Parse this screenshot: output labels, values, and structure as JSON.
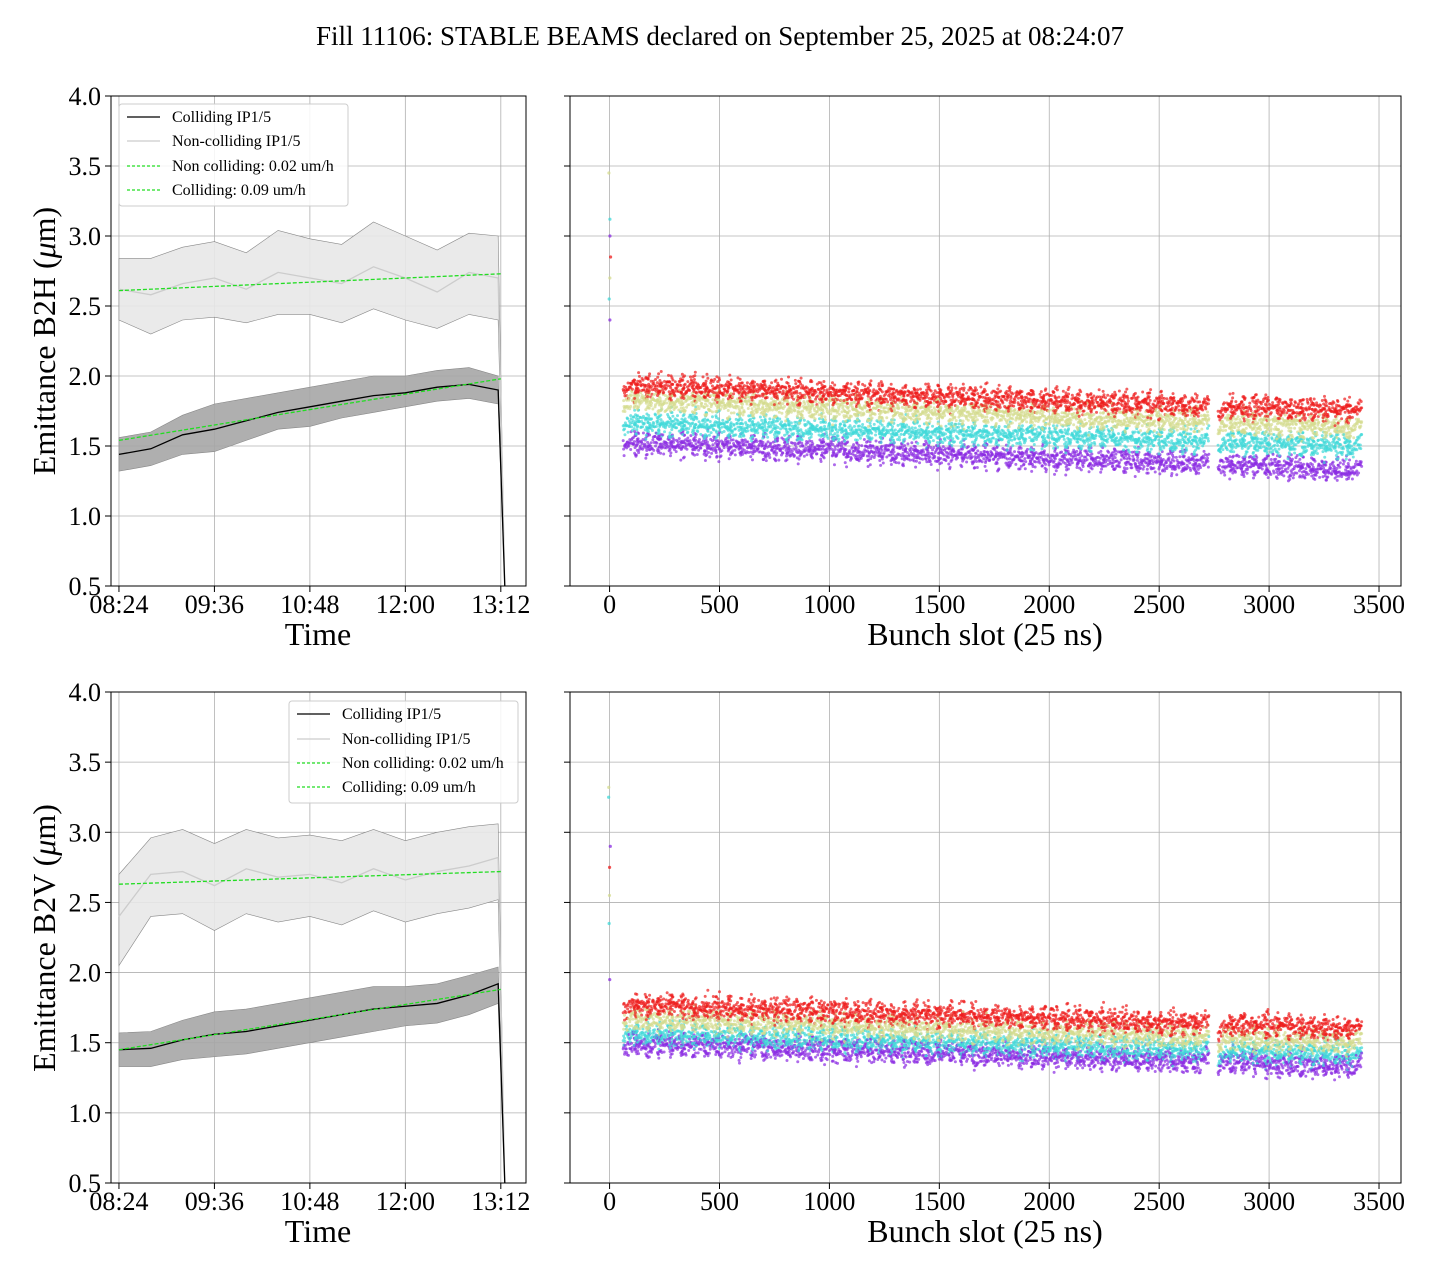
{
  "figure": {
    "title": "Fill 11106: STABLE BEAMS declared on September 25, 2025 at 08:24:07"
  },
  "colors": {
    "colliding_line": "#000000",
    "colliding_band": "#a6a6a6",
    "noncolliding_line": "#cccccc",
    "noncolliding_band": "#e8e8e8",
    "fit": "#22dd22",
    "grid": "#b0b0b0",
    "scatter": [
      "#8a2be2",
      "#3fd8d8",
      "#d4db8e",
      "#ee1c1c"
    ]
  },
  "chart_data": [
    {
      "type": "line",
      "panel": "B2H-time",
      "xlabel": "Time",
      "ylabel": "Emittance B2H ($\\mu$m)",
      "xlim": [
        "08:18",
        "13:31"
      ],
      "ylim": [
        0.5,
        4.0
      ],
      "xticks": [
        "08:24",
        "09:36",
        "10:48",
        "12:00",
        "13:12"
      ],
      "yticks": [
        "0.5",
        "1.0",
        "1.5",
        "2.0",
        "2.5",
        "3.0",
        "3.5",
        "4.0"
      ],
      "grid": true,
      "legend_position": "top-left",
      "legend": [
        "Colliding IP1/5",
        "Non-colliding IP1/5",
        "Non colliding: 0.02 um/h",
        "Colliding: 0.09 um/h"
      ],
      "colliding": {
        "times": [
          "08:24",
          "08:48",
          "09:12",
          "09:36",
          "10:00",
          "10:24",
          "10:48",
          "11:12",
          "11:36",
          "12:00",
          "12:24",
          "12:48",
          "13:10",
          "13:15"
        ],
        "mean": [
          1.44,
          1.48,
          1.58,
          1.62,
          1.68,
          1.74,
          1.78,
          1.82,
          1.86,
          1.88,
          1.92,
          1.94,
          1.9,
          0.5
        ],
        "band_low": [
          1.32,
          1.36,
          1.44,
          1.46,
          1.54,
          1.62,
          1.64,
          1.7,
          1.74,
          1.78,
          1.82,
          1.84,
          1.8,
          0.5
        ],
        "band_high": [
          1.56,
          1.6,
          1.72,
          1.8,
          1.84,
          1.88,
          1.92,
          1.96,
          2.0,
          2.0,
          2.04,
          2.06,
          2.0,
          0.5
        ]
      },
      "noncolliding": {
        "times": [
          "08:24",
          "08:48",
          "09:12",
          "09:36",
          "10:00",
          "10:24",
          "10:48",
          "11:12",
          "11:36",
          "12:00",
          "12:24",
          "12:48",
          "13:10",
          "13:15"
        ],
        "mean": [
          2.62,
          2.58,
          2.66,
          2.7,
          2.62,
          2.74,
          2.7,
          2.66,
          2.78,
          2.7,
          2.6,
          2.74,
          2.7,
          0.5
        ],
        "band_low": [
          2.4,
          2.3,
          2.4,
          2.42,
          2.38,
          2.44,
          2.44,
          2.38,
          2.48,
          2.4,
          2.34,
          2.44,
          2.4,
          0.5
        ],
        "band_high": [
          2.84,
          2.84,
          2.92,
          2.96,
          2.88,
          3.04,
          2.98,
          2.94,
          3.1,
          3.0,
          2.9,
          3.02,
          3.0,
          0.5
        ]
      },
      "fit_noncolliding": {
        "start": [
          "08:24",
          2.61
        ],
        "end": [
          "13:12",
          2.73
        ]
      },
      "fit_colliding": {
        "start": [
          "08:24",
          1.54
        ],
        "end": [
          "13:12",
          1.98
        ]
      }
    },
    {
      "type": "scatter",
      "panel": "B2H-bunch",
      "xlabel": "Bunch slot (25 ns)",
      "xlim": [
        -180,
        3600
      ],
      "ylim": [
        0.5,
        4.0
      ],
      "xticks": [
        0,
        500,
        1000,
        1500,
        2000,
        2500,
        3000,
        3500
      ],
      "grid": true,
      "trains": [
        62,
        112,
        165,
        218,
        271,
        324,
        377,
        430,
        483,
        536,
        589,
        642,
        695,
        748,
        801,
        854,
        907,
        960,
        1013,
        1066,
        1119,
        1172,
        1225,
        1278,
        1331,
        1384,
        1437,
        1490,
        1543,
        1596,
        1649,
        1702,
        1755,
        1808,
        1861,
        1914,
        1967,
        2020,
        2073,
        2126,
        2179,
        2232,
        2285,
        2338,
        2391,
        2444,
        2497,
        2550,
        2603,
        2656,
        2768,
        2821,
        2874,
        2927,
        2980,
        3033,
        3086,
        3139,
        3192,
        3245,
        3298,
        3351
      ],
      "first_slot": {
        "x": 0,
        "values": [
          2.4,
          2.55,
          2.7,
          2.85,
          3.0,
          3.12,
          3.45
        ]
      },
      "level_start": [
        1.48,
        1.62,
        1.78,
        1.88
      ],
      "level_end": [
        1.28,
        1.45,
        1.58,
        1.7
      ]
    },
    {
      "type": "line",
      "panel": "B2V-time",
      "xlabel": "Time",
      "ylabel": "Emittance B2V ($\\mu$m)",
      "xlim": [
        "08:18",
        "13:31"
      ],
      "ylim": [
        0.5,
        4.0
      ],
      "xticks": [
        "08:24",
        "09:36",
        "10:48",
        "12:00",
        "13:12"
      ],
      "yticks": [
        "0.5",
        "1.0",
        "1.5",
        "2.0",
        "2.5",
        "3.0",
        "3.5",
        "4.0"
      ],
      "grid": true,
      "legend_position": "top-right",
      "legend": [
        "Colliding IP1/5",
        "Non-colliding IP1/5",
        "Non colliding: 0.02 um/h",
        "Colliding: 0.09 um/h"
      ],
      "colliding": {
        "times": [
          "08:24",
          "08:48",
          "09:12",
          "09:36",
          "10:00",
          "10:24",
          "10:48",
          "11:12",
          "11:36",
          "12:00",
          "12:24",
          "12:48",
          "13:10",
          "13:15"
        ],
        "mean": [
          1.45,
          1.46,
          1.52,
          1.56,
          1.58,
          1.62,
          1.66,
          1.7,
          1.74,
          1.76,
          1.78,
          1.84,
          1.92,
          0.5
        ],
        "band_low": [
          1.33,
          1.33,
          1.38,
          1.4,
          1.42,
          1.46,
          1.5,
          1.54,
          1.58,
          1.62,
          1.64,
          1.7,
          1.78,
          0.5
        ],
        "band_high": [
          1.57,
          1.58,
          1.66,
          1.72,
          1.74,
          1.78,
          1.82,
          1.86,
          1.9,
          1.9,
          1.92,
          1.98,
          2.04,
          0.5
        ]
      },
      "noncolliding": {
        "times": [
          "08:24",
          "08:48",
          "09:12",
          "09:36",
          "10:00",
          "10:24",
          "10:48",
          "11:12",
          "11:36",
          "12:00",
          "12:24",
          "12:48",
          "13:10",
          "13:15"
        ],
        "mean": [
          2.4,
          2.7,
          2.72,
          2.62,
          2.74,
          2.68,
          2.7,
          2.64,
          2.74,
          2.66,
          2.72,
          2.76,
          2.82,
          0.5
        ],
        "band_low": [
          2.05,
          2.4,
          2.42,
          2.3,
          2.42,
          2.36,
          2.4,
          2.34,
          2.44,
          2.36,
          2.42,
          2.46,
          2.52,
          0.5
        ],
        "band_high": [
          2.7,
          2.96,
          3.02,
          2.92,
          3.02,
          2.96,
          2.98,
          2.94,
          3.02,
          2.94,
          3.0,
          3.04,
          3.06,
          0.5
        ]
      },
      "fit_noncolliding": {
        "start": [
          "08:24",
          2.63
        ],
        "end": [
          "13:12",
          2.72
        ]
      },
      "fit_colliding": {
        "start": [
          "08:24",
          1.45
        ],
        "end": [
          "13:12",
          1.88
        ]
      }
    },
    {
      "type": "scatter",
      "panel": "B2V-bunch",
      "xlabel": "Bunch slot (25 ns)",
      "xlim": [
        -180,
        3600
      ],
      "ylim": [
        0.5,
        4.0
      ],
      "xticks": [
        0,
        500,
        1000,
        1500,
        2000,
        2500,
        3000,
        3500
      ],
      "grid": true,
      "trains": [
        62,
        112,
        165,
        218,
        271,
        324,
        377,
        430,
        483,
        536,
        589,
        642,
        695,
        748,
        801,
        854,
        907,
        960,
        1013,
        1066,
        1119,
        1172,
        1225,
        1278,
        1331,
        1384,
        1437,
        1490,
        1543,
        1596,
        1649,
        1702,
        1755,
        1808,
        1861,
        1914,
        1967,
        2020,
        2073,
        2126,
        2179,
        2232,
        2285,
        2338,
        2391,
        2444,
        2497,
        2550,
        2603,
        2656,
        2768,
        2821,
        2874,
        2927,
        2980,
        3033,
        3086,
        3139,
        3192,
        3245,
        3298,
        3351
      ],
      "first_slot": {
        "x": 0,
        "values": [
          1.95,
          2.35,
          2.55,
          2.75,
          2.9,
          3.25,
          3.32
        ]
      },
      "level_start": [
        1.45,
        1.52,
        1.62,
        1.72
      ],
      "level_end": [
        1.28,
        1.36,
        1.45,
        1.55
      ]
    }
  ]
}
